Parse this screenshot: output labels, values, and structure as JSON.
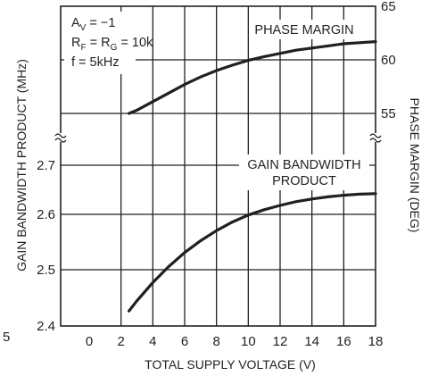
{
  "chart_data": {
    "type": "line",
    "title": "",
    "xlabel": "TOTAL SUPPLY VOLTAGE (V)",
    "xlim": [
      0,
      18
    ],
    "x_ticks": [
      "0",
      "2",
      "4",
      "6",
      "8",
      "10",
      "12",
      "14",
      "16",
      "18"
    ],
    "grid": true,
    "panels": [
      {
        "name": "lower",
        "ylabel": "GAIN BANDWIDTH PRODUCT (MHz)",
        "ylim": [
          2.4,
          2.8
        ],
        "y_ticks": [
          "2.4",
          "2.5",
          "2.6",
          "2.7"
        ],
        "series": [
          {
            "name": "GAIN BANDWIDTH PRODUCT",
            "x": [
              2.5,
              3,
              4,
              5,
              6,
              7,
              8,
              9,
              10,
              11,
              12,
              13,
              14,
              15,
              16,
              17,
              18
            ],
            "y": [
              2.428,
              2.447,
              2.481,
              2.511,
              2.537,
              2.559,
              2.578,
              2.594,
              2.607,
              2.617,
              2.625,
              2.632,
              2.637,
              2.641,
              2.644,
              2.646,
              2.647
            ]
          }
        ]
      },
      {
        "name": "upper",
        "ylabel": "PHASE MARGIN (DEG)",
        "ylim": [
          55,
          65
        ],
        "y_ticks": [
          "55",
          "60",
          "65"
        ],
        "series": [
          {
            "name": "PHASE MARGIN",
            "x": [
              2.5,
              3,
              4,
              5,
              6,
              7,
              8,
              9,
              10,
              11,
              12,
              13,
              14,
              15,
              16,
              17,
              18
            ],
            "y": [
              55.0,
              55.3,
              56.1,
              56.9,
              57.7,
              58.4,
              59.0,
              59.5,
              59.95,
              60.3,
              60.6,
              60.9,
              61.1,
              61.3,
              61.5,
              61.6,
              61.7
            ]
          }
        ]
      }
    ],
    "left_partial_tick": "5",
    "conditions": [
      {
        "main": "A",
        "sub": "V",
        "rest": " = −1"
      },
      {
        "main": "R",
        "sub": "F",
        "rest": " = R",
        "sub2": "G",
        "rest2": " = 10k"
      },
      {
        "main": "f = 5kHz",
        "sub": "",
        "rest": ""
      }
    ],
    "annotations": {
      "phase_label": "PHASE MARGIN",
      "gbw_label_line1": "GAIN BANDWIDTH",
      "gbw_label_line2": "PRODUCT"
    }
  }
}
